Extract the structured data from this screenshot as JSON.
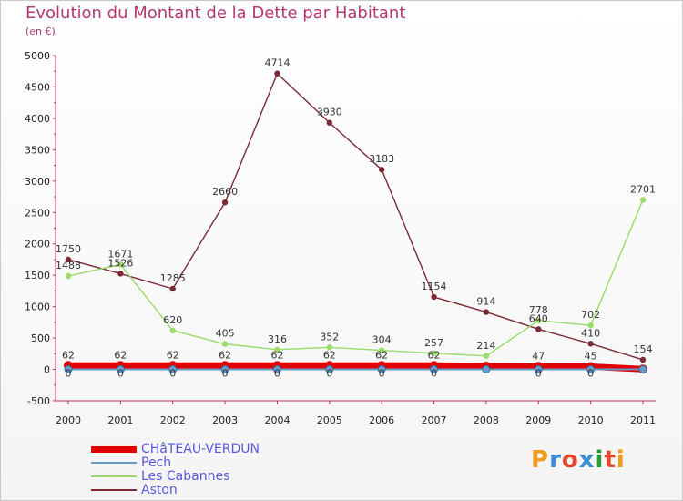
{
  "header": {
    "title": "Evolution du Montant de la Dette par Habitant",
    "unit": "(en €)"
  },
  "logo": {
    "text": "Proxiti",
    "colors": [
      "#f29b1d",
      "#3a8fd8",
      "#e2462c",
      "#3a8fd8",
      "#2a9d3a",
      "#e2462c",
      "#f29b1d"
    ]
  },
  "chart_data": {
    "type": "line",
    "x": [
      "2000",
      "2001",
      "2002",
      "2003",
      "2004",
      "2005",
      "2006",
      "2007",
      "2008",
      "2009",
      "2010",
      "2011"
    ],
    "ylim": [
      -500,
      5000
    ],
    "yticks": [
      -500,
      0,
      500,
      1000,
      1500,
      2000,
      2500,
      3000,
      3500,
      4000,
      4500,
      5000
    ],
    "grid": false,
    "legend_position": "bottom-left",
    "series": [
      {
        "name": "CHâTEAU-VERDUN",
        "color": "#e00000",
        "values": [
          62,
          62,
          62,
          62,
          62,
          62,
          62,
          62,
          52,
          47,
          45,
          5
        ],
        "labels": [
          "62",
          "62",
          "62",
          "62",
          "62",
          "62",
          "62",
          "62",
          "",
          "47",
          "45",
          ""
        ]
      },
      {
        "name": "Pech",
        "color": "#6a9bc6",
        "values": [
          0,
          0,
          0,
          0,
          0,
          0,
          0,
          0,
          0,
          0,
          0,
          0
        ],
        "labels": [
          "0",
          "0",
          "0",
          "0",
          "0",
          "0",
          "0",
          "0",
          "",
          "0",
          "0",
          ""
        ]
      },
      {
        "name": "Les Cabannes",
        "color": "#9adb6a",
        "values": [
          1488,
          1671,
          620,
          405,
          316,
          352,
          304,
          257,
          214,
          778,
          702,
          2701
        ],
        "labels": [
          "1488",
          "1671",
          "620",
          "405",
          "316",
          "352",
          "304",
          "257",
          "214",
          "778",
          "702",
          "2701"
        ]
      },
      {
        "name": "Aston",
        "color": "#7a2a34",
        "values": [
          1750,
          1526,
          1285,
          2660,
          4714,
          3930,
          3183,
          1154,
          914,
          640,
          410,
          154
        ],
        "labels": [
          "1750",
          "1526",
          "1285",
          "2660",
          "4714",
          "3930",
          "3183",
          "1154",
          "914",
          "640",
          "410",
          "154"
        ]
      }
    ]
  }
}
